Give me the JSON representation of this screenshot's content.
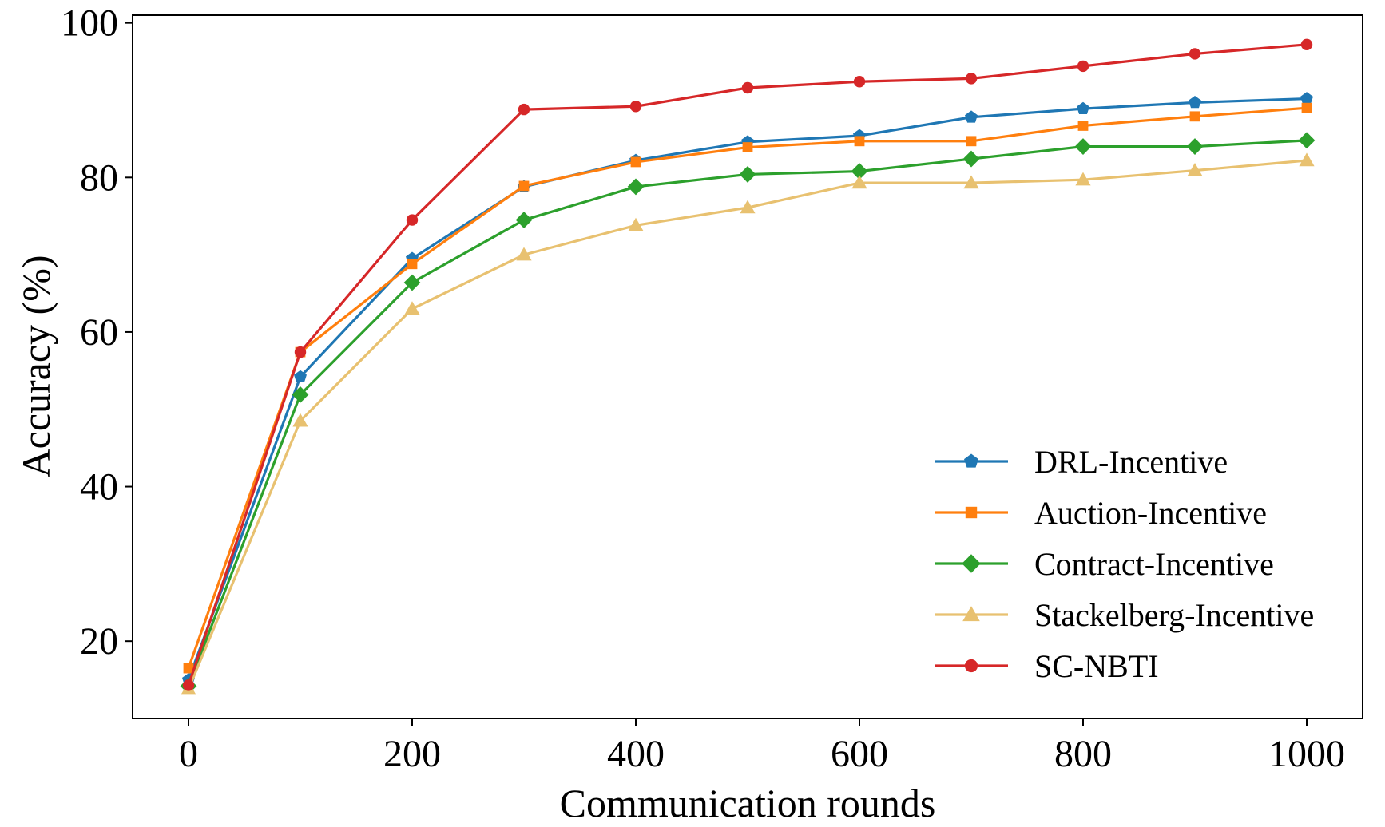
{
  "chart_data": {
    "type": "line",
    "title": "",
    "xlabel": "Communication rounds",
    "ylabel": "Accuracy (%)",
    "x": [
      0,
      100,
      200,
      300,
      400,
      500,
      600,
      700,
      800,
      900,
      1000
    ],
    "xlim": [
      -50,
      1050
    ],
    "ylim": [
      10,
      101
    ],
    "xticks": [
      0,
      200,
      400,
      600,
      800,
      1000
    ],
    "yticks": [
      20,
      40,
      60,
      80,
      100
    ],
    "grid": false,
    "legend_position": "bottom-right",
    "series": [
      {
        "name": "DRL-Incentive",
        "color": "#1f77b4",
        "marker": "pentagon",
        "values": [
          15.0,
          54.2,
          69.5,
          78.8,
          82.2,
          84.6,
          85.4,
          87.8,
          88.9,
          89.7,
          90.2
        ]
      },
      {
        "name": "Auction-Incentive",
        "color": "#ff7f0e",
        "marker": "square",
        "values": [
          16.5,
          57.4,
          68.8,
          78.9,
          82.0,
          83.9,
          84.7,
          84.7,
          86.7,
          87.9,
          89.0
        ]
      },
      {
        "name": "Contract-Incentive",
        "color": "#2ca02c",
        "marker": "diamond",
        "values": [
          14.2,
          51.9,
          66.4,
          74.5,
          78.8,
          80.4,
          80.8,
          82.4,
          84.0,
          84.0,
          84.8
        ]
      },
      {
        "name": "Stackelberg-Incentive",
        "color": "#e8c170",
        "marker": "triangle",
        "values": [
          13.8,
          48.5,
          63.0,
          70.0,
          73.8,
          76.1,
          79.3,
          79.3,
          79.7,
          80.9,
          82.2
        ]
      },
      {
        "name": "SC-NBTI",
        "color": "#d62728",
        "marker": "circle",
        "values": [
          14.3,
          57.4,
          74.5,
          88.8,
          89.2,
          91.6,
          92.4,
          92.8,
          94.4,
          96.0,
          97.2
        ]
      }
    ]
  }
}
